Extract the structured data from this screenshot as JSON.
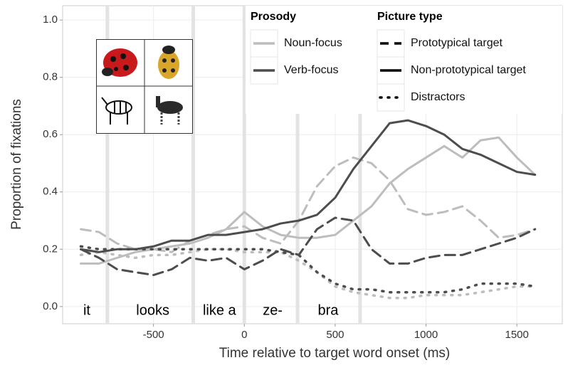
{
  "chart_data": {
    "type": "line",
    "x_label": "Time relative to target word onset (ms)",
    "y_label": "Proportion of fixations",
    "xlim": [
      -1000,
      1750
    ],
    "ylim": [
      -0.06,
      1.05
    ],
    "xticks": [
      -500,
      0,
      500,
      1000,
      1500
    ],
    "yticks": [
      {
        "value": 0,
        "label": "0.0"
      },
      {
        "value": 0.2,
        "label": "0.2"
      },
      {
        "value": 0.4,
        "label": "0.4"
      },
      {
        "value": 0.6,
        "label": "0.6"
      },
      {
        "value": 0.8,
        "label": "0.8"
      },
      {
        "value": 1,
        "label": "1.0"
      }
    ],
    "grid": true,
    "word_boundaries": [
      -754,
      -281,
      0,
      293,
      637
    ],
    "words": [
      {
        "label": "it",
        "x": -867
      },
      {
        "label": "looks",
        "x": -504
      },
      {
        "label": "like a",
        "x": -137
      },
      {
        "label": "ze-",
        "x": 156
      },
      {
        "label": "bra",
        "x": 461
      }
    ],
    "x": [
      -900,
      -800,
      -700,
      -600,
      -500,
      -400,
      -300,
      -200,
      -100,
      0,
      100,
      200,
      300,
      400,
      500,
      600,
      700,
      800,
      900,
      1000,
      1100,
      1200,
      1300,
      1400,
      1500,
      1600
    ],
    "series": [
      {
        "color": "#bdbdbd",
        "dash": "dashed",
        "values": [
          0.27,
          0.26,
          0.22,
          0.2,
          0.2,
          0.19,
          0.23,
          0.25,
          0.27,
          0.28,
          0.24,
          0.22,
          0.3,
          0.42,
          0.49,
          0.52,
          0.5,
          0.44,
          0.34,
          0.32,
          0.33,
          0.35,
          0.3,
          0.24,
          0.25,
          0.27
        ]
      },
      {
        "color": "#bdbdbd",
        "dash": "solid",
        "values": [
          0.15,
          0.15,
          0.17,
          0.19,
          0.2,
          0.21,
          0.22,
          0.24,
          0.27,
          0.33,
          0.28,
          0.25,
          0.24,
          0.24,
          0.25,
          0.3,
          0.35,
          0.43,
          0.48,
          0.52,
          0.56,
          0.52,
          0.58,
          0.59,
          0.52,
          0.46
        ]
      },
      {
        "color": "#bdbdbd",
        "dash": "dotted",
        "values": [
          0.18,
          0.19,
          0.18,
          0.17,
          0.18,
          0.18,
          0.19,
          0.2,
          0.2,
          0.19,
          0.19,
          0.19,
          0.16,
          0.12,
          0.07,
          0.05,
          0.04,
          0.03,
          0.03,
          0.04,
          0.04,
          0.04,
          0.05,
          0.06,
          0.07,
          0.07
        ]
      },
      {
        "color": "#4d4d4d",
        "dash": "dashed",
        "values": [
          0.2,
          0.17,
          0.13,
          0.12,
          0.11,
          0.13,
          0.17,
          0.16,
          0.17,
          0.13,
          0.16,
          0.2,
          0.18,
          0.27,
          0.31,
          0.3,
          0.2,
          0.15,
          0.15,
          0.17,
          0.18,
          0.18,
          0.2,
          0.22,
          0.24,
          0.27
        ]
      },
      {
        "color": "#4d4d4d",
        "dash": "solid",
        "values": [
          0.2,
          0.19,
          0.2,
          0.2,
          0.21,
          0.23,
          0.23,
          0.25,
          0.25,
          0.26,
          0.27,
          0.29,
          0.3,
          0.32,
          0.38,
          0.48,
          0.56,
          0.64,
          0.65,
          0.63,
          0.6,
          0.55,
          0.53,
          0.5,
          0.47,
          0.46
        ]
      },
      {
        "color": "#4d4d4d",
        "dash": "dotted",
        "values": [
          0.21,
          0.2,
          0.2,
          0.2,
          0.2,
          0.2,
          0.2,
          0.2,
          0.2,
          0.2,
          0.2,
          0.19,
          0.18,
          0.12,
          0.08,
          0.06,
          0.06,
          0.05,
          0.05,
          0.05,
          0.05,
          0.06,
          0.08,
          0.08,
          0.08,
          0.07
        ]
      }
    ],
    "legend": [
      {
        "title": "Prosody",
        "entries": [
          {
            "label": "Noun-focus",
            "color": "#bdbdbd",
            "dash": "solid"
          },
          {
            "label": "Verb-focus",
            "color": "#4d4d4d",
            "dash": "solid"
          }
        ]
      },
      {
        "title": "Picture type",
        "entries": [
          {
            "label": "Prototypical target",
            "color": "#000000",
            "dash": "dashed"
          },
          {
            "label": "Non-prototypical target",
            "color": "#000000",
            "dash": "solid"
          },
          {
            "label": "Distractors",
            "color": "#000000",
            "dash": "dotted"
          }
        ]
      }
    ]
  }
}
